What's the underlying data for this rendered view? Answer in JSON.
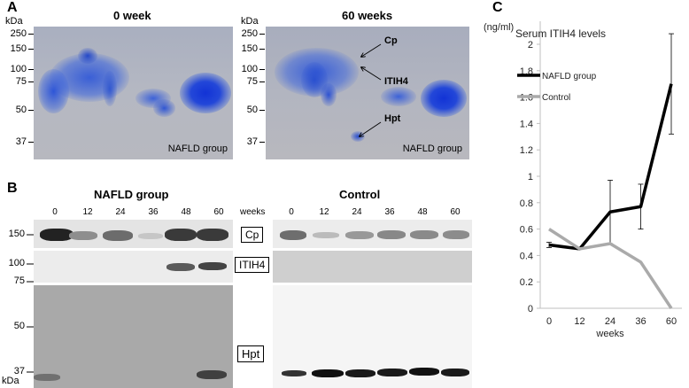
{
  "panel_a": {
    "letter": "A",
    "kda_label": "kDa",
    "gel_left": {
      "title": "0 week",
      "caption": "NAFLD group"
    },
    "gel_right": {
      "title": "60 weeks",
      "caption": "NAFLD group"
    },
    "markers": [
      "250",
      "150",
      "100",
      "75",
      "50",
      "37"
    ],
    "arrows": [
      "Cp",
      "ITIH4",
      "Hpt"
    ]
  },
  "panel_b": {
    "letter": "B",
    "nafld_title": "NAFLD group",
    "control_title": "Control",
    "weeks_label": "weeks",
    "lanes": [
      "0",
      "12",
      "24",
      "36",
      "48",
      "60"
    ],
    "markers_top": [
      "150",
      "100",
      "75"
    ],
    "markers_bottom": [
      "50",
      "37"
    ],
    "kda_label": "kDa",
    "row_labels": [
      "Cp",
      "ITIH4",
      "Hpt"
    ]
  },
  "panel_c": {
    "letter": "C",
    "chart_data": {
      "type": "line",
      "title": "Serum ITIH4 levels",
      "ylabel": "(ng/ml)",
      "xlabel": "weeks",
      "x": [
        0,
        12,
        24,
        36,
        60
      ],
      "ylim": [
        0,
        2.2
      ],
      "yticks": [
        "0",
        "0.2",
        "0.4",
        "0.6",
        "0.8",
        "1",
        "1.2",
        "1.4",
        "1.6",
        "1.8",
        "2"
      ],
      "series": [
        {
          "name": "NAFLD group",
          "color": "#000000",
          "values": [
            0.48,
            0.45,
            0.73,
            0.77,
            1.7
          ],
          "error": [
            0.02,
            0.0,
            0.24,
            0.17,
            0.38
          ]
        },
        {
          "name": "Control",
          "color": "#aaaaaa",
          "values": [
            0.6,
            0.45,
            0.49,
            0.35,
            0.0
          ]
        }
      ],
      "legend": "top-left",
      "grid": false
    }
  }
}
